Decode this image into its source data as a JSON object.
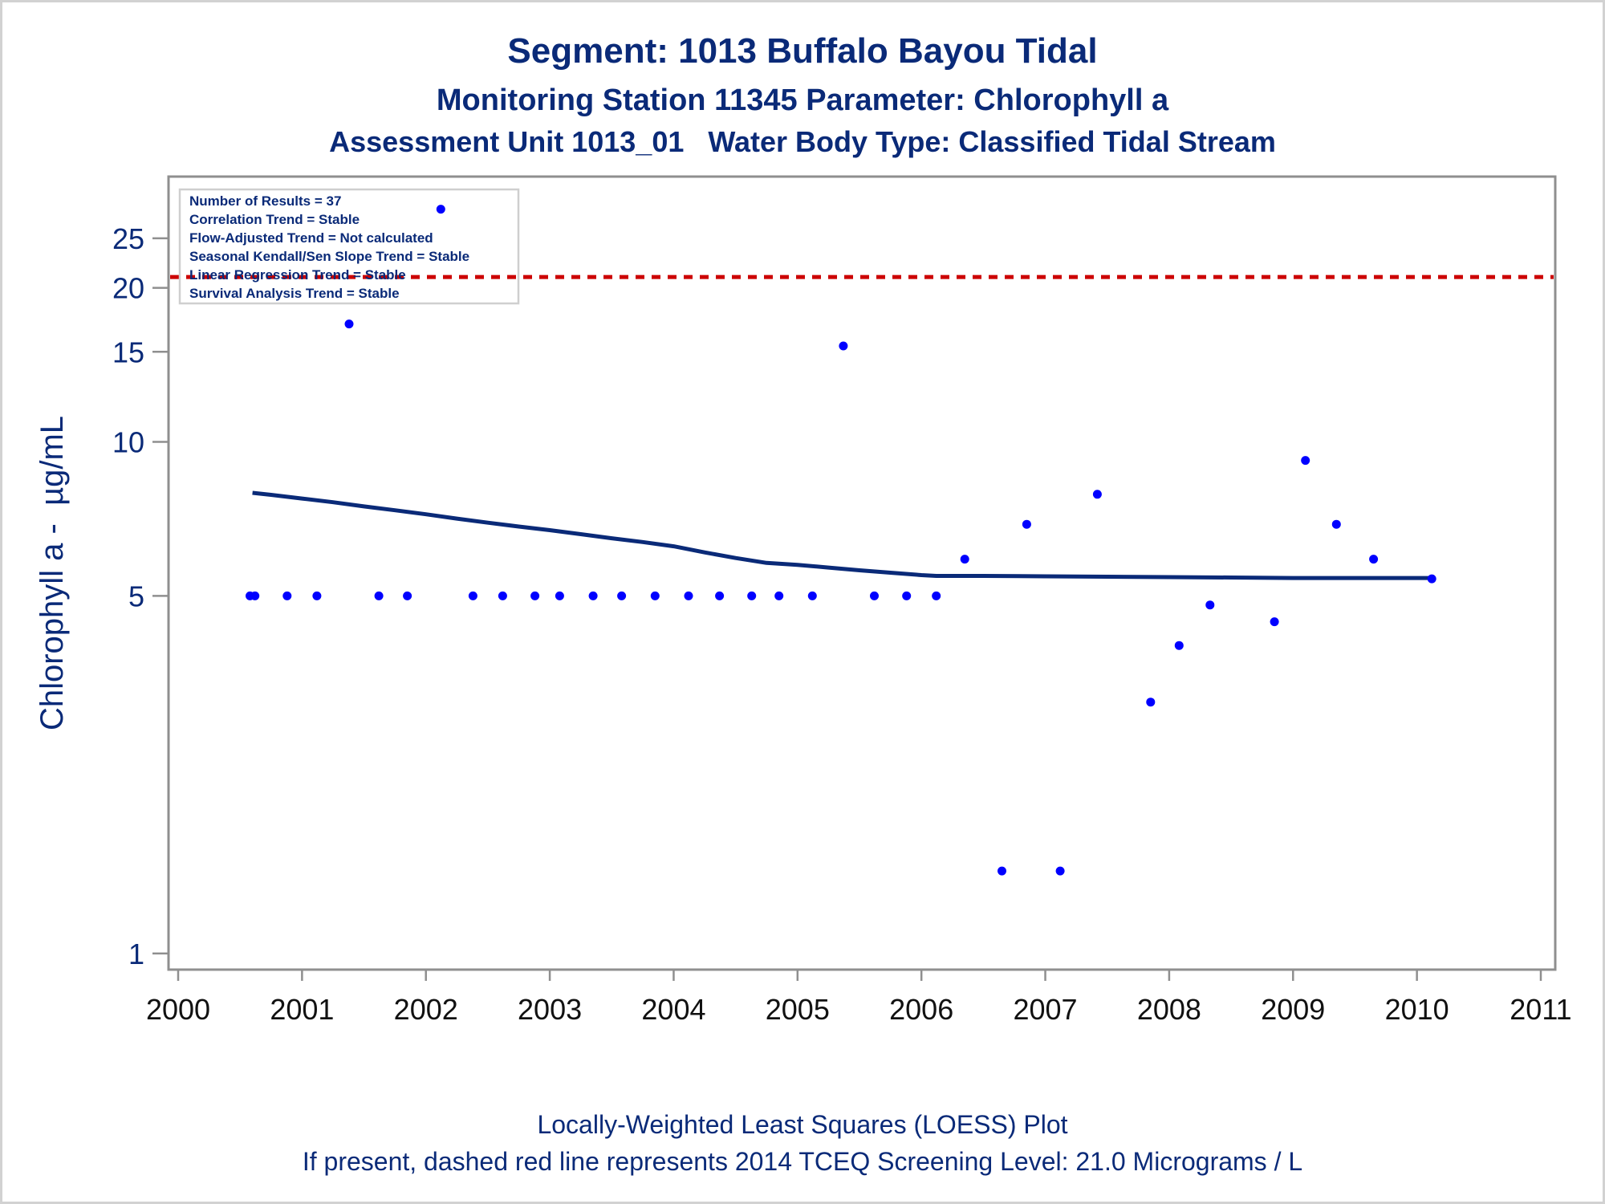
{
  "chart_data": {
    "type": "scatter",
    "title": "Segment: 1013  Buffalo Bayou Tidal",
    "subtitle": "Monitoring Station 11345 Parameter: Chlorophyll a",
    "subtitle2": "Assessment Unit 1013_01   Water Body Type: Classified Tidal Stream",
    "ylabel": "Chlorophyll a -  µg/mL",
    "xlabel": "",
    "y_scale": "log",
    "xlim": [
      2000,
      2011
    ],
    "ylim": [
      0.93,
      33
    ],
    "x_ticks": [
      "2000",
      "2001",
      "2002",
      "2003",
      "2004",
      "2005",
      "2006",
      "2007",
      "2008",
      "2009",
      "2010",
      "2011"
    ],
    "y_ticks": [
      "1",
      "5",
      "10",
      "15",
      "20",
      "25"
    ],
    "y_tick_values": [
      1,
      5,
      10,
      15,
      20,
      25
    ],
    "legend_box": {
      "position": "top-left",
      "lines": [
        "Number of Results = 37",
        "Correlation Trend = Stable",
        "Flow-Adjusted Trend = Not calculated",
        "Seasonal Kendall/Sen Slope Trend = Stable",
        "Linear Regression Trend = Stable",
        "Survival Analysis Trend = Stable"
      ]
    },
    "screening_level": {
      "value": 21.0,
      "color": "#cc0000",
      "style": "dashed"
    },
    "series": [
      {
        "type": "scatter",
        "color": "#0000ff",
        "points": [
          [
            2000.58,
            5.0
          ],
          [
            2000.62,
            5.0
          ],
          [
            2000.88,
            5.0
          ],
          [
            2001.12,
            5.0
          ],
          [
            2001.38,
            17.0
          ],
          [
            2001.62,
            5.0
          ],
          [
            2001.85,
            5.0
          ],
          [
            2002.12,
            28.5
          ],
          [
            2002.38,
            5.0
          ],
          [
            2002.62,
            5.0
          ],
          [
            2002.88,
            5.0
          ],
          [
            2003.08,
            5.0
          ],
          [
            2003.35,
            5.0
          ],
          [
            2003.58,
            5.0
          ],
          [
            2003.85,
            5.0
          ],
          [
            2004.12,
            5.0
          ],
          [
            2004.37,
            5.0
          ],
          [
            2004.63,
            5.0
          ],
          [
            2004.85,
            5.0
          ],
          [
            2005.12,
            5.0
          ],
          [
            2005.37,
            15.4
          ],
          [
            2005.62,
            5.0
          ],
          [
            2005.88,
            5.0
          ],
          [
            2006.12,
            5.0
          ],
          [
            2006.35,
            5.9
          ],
          [
            2006.65,
            1.45
          ],
          [
            2006.85,
            6.9
          ],
          [
            2007.12,
            1.45
          ],
          [
            2007.42,
            7.9
          ],
          [
            2007.85,
            3.1
          ],
          [
            2008.08,
            4.0
          ],
          [
            2008.33,
            4.8
          ],
          [
            2008.85,
            4.45
          ],
          [
            2009.1,
            9.2
          ],
          [
            2009.35,
            6.9
          ],
          [
            2009.65,
            5.9
          ],
          [
            2010.12,
            5.4
          ]
        ]
      },
      {
        "type": "line",
        "name": "LOESS",
        "color": "#0a2a78",
        "points": [
          [
            2000.6,
            7.95
          ],
          [
            2000.75,
            7.88
          ],
          [
            2001.0,
            7.75
          ],
          [
            2001.25,
            7.62
          ],
          [
            2001.5,
            7.48
          ],
          [
            2001.75,
            7.35
          ],
          [
            2002.0,
            7.22
          ],
          [
            2002.25,
            7.08
          ],
          [
            2002.5,
            6.95
          ],
          [
            2002.75,
            6.83
          ],
          [
            2003.0,
            6.72
          ],
          [
            2003.25,
            6.6
          ],
          [
            2003.5,
            6.48
          ],
          [
            2003.75,
            6.37
          ],
          [
            2004.0,
            6.25
          ],
          [
            2004.25,
            6.08
          ],
          [
            2004.5,
            5.93
          ],
          [
            2004.75,
            5.8
          ],
          [
            2005.0,
            5.75
          ],
          [
            2005.25,
            5.68
          ],
          [
            2005.5,
            5.61
          ],
          [
            2005.75,
            5.55
          ],
          [
            2006.0,
            5.49
          ],
          [
            2006.12,
            5.47
          ],
          [
            2006.5,
            5.47
          ],
          [
            2007.0,
            5.46
          ],
          [
            2007.5,
            5.45
          ],
          [
            2008.0,
            5.44
          ],
          [
            2008.5,
            5.43
          ],
          [
            2009.0,
            5.42
          ],
          [
            2009.5,
            5.42
          ],
          [
            2010.12,
            5.42
          ]
        ]
      }
    ]
  },
  "footer": {
    "line1": "Locally-Weighted Least Squares (LOESS) Plot",
    "line2": "If present, dashed red line represents 2014 TCEQ Screening Level: 21.0 Micrograms / L"
  }
}
